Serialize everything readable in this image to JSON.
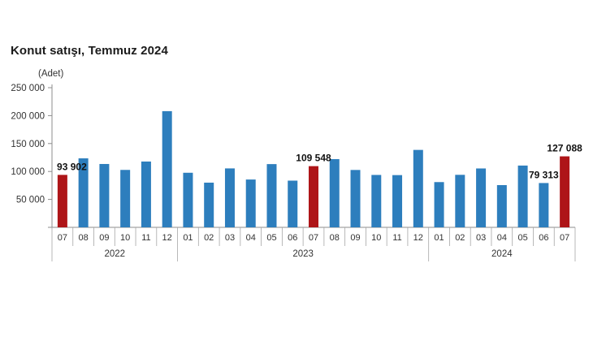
{
  "header": {
    "title": "Konut satışı, Temmuz 2024",
    "unit_label": "(Adet)"
  },
  "chart_data": {
    "type": "bar",
    "title": "Konut satışı, Temmuz 2024",
    "ylabel": "(Adet)",
    "xlabel": "",
    "ylim": [
      0,
      250000
    ],
    "ytick_step": 50000,
    "ytick_labels_top_down": [
      "250 000",
      "200 000",
      "150 000",
      "100 000",
      "50 000"
    ],
    "grid": false,
    "legend": "none",
    "year_groups": [
      {
        "label": "2022",
        "months": [
          "07",
          "08",
          "09",
          "10",
          "11",
          "12"
        ]
      },
      {
        "label": "2023",
        "months": [
          "01",
          "02",
          "03",
          "04",
          "05",
          "06",
          "07",
          "08",
          "09",
          "10",
          "11",
          "12"
        ]
      },
      {
        "label": "2024",
        "months": [
          "01",
          "02",
          "03",
          "04",
          "05",
          "06",
          "07"
        ]
      }
    ],
    "series": [
      {
        "name": "Konut satışı (Adet)",
        "points": [
          {
            "year": "2022",
            "month": "07",
            "value": 93902,
            "data_label": "93 902",
            "highlight": true
          },
          {
            "year": "2022",
            "month": "08",
            "value": 123500
          },
          {
            "year": "2022",
            "month": "09",
            "value": 113400
          },
          {
            "year": "2022",
            "month": "10",
            "value": 102800
          },
          {
            "year": "2022",
            "month": "11",
            "value": 117800
          },
          {
            "year": "2022",
            "month": "12",
            "value": 208000
          },
          {
            "year": "2023",
            "month": "01",
            "value": 97700
          },
          {
            "year": "2023",
            "month": "02",
            "value": 80000
          },
          {
            "year": "2023",
            "month": "03",
            "value": 105500
          },
          {
            "year": "2023",
            "month": "04",
            "value": 85600
          },
          {
            "year": "2023",
            "month": "05",
            "value": 113200
          },
          {
            "year": "2023",
            "month": "06",
            "value": 83600
          },
          {
            "year": "2023",
            "month": "07",
            "value": 109548,
            "data_label": "109 548",
            "highlight": true
          },
          {
            "year": "2023",
            "month": "08",
            "value": 122100
          },
          {
            "year": "2023",
            "month": "09",
            "value": 102700
          },
          {
            "year": "2023",
            "month": "10",
            "value": 93800
          },
          {
            "year": "2023",
            "month": "11",
            "value": 93500
          },
          {
            "year": "2023",
            "month": "12",
            "value": 138600
          },
          {
            "year": "2024",
            "month": "01",
            "value": 81000
          },
          {
            "year": "2024",
            "month": "02",
            "value": 94000
          },
          {
            "year": "2024",
            "month": "03",
            "value": 105400
          },
          {
            "year": "2024",
            "month": "04",
            "value": 75600
          },
          {
            "year": "2024",
            "month": "05",
            "value": 110600
          },
          {
            "year": "2024",
            "month": "06",
            "value": 79313,
            "data_label": "79 313"
          },
          {
            "year": "2024",
            "month": "07",
            "value": 127088,
            "data_label": "127 088",
            "highlight": true
          }
        ]
      }
    ],
    "colors": {
      "bar_default": "#2d7ebd",
      "bar_highlight": "#ae1518",
      "axis": "#8c8c8c",
      "separator": "#a6a6a6",
      "tick_text": "#333333",
      "label_text": "#111111",
      "title_text": "#1b1b1b"
    }
  }
}
